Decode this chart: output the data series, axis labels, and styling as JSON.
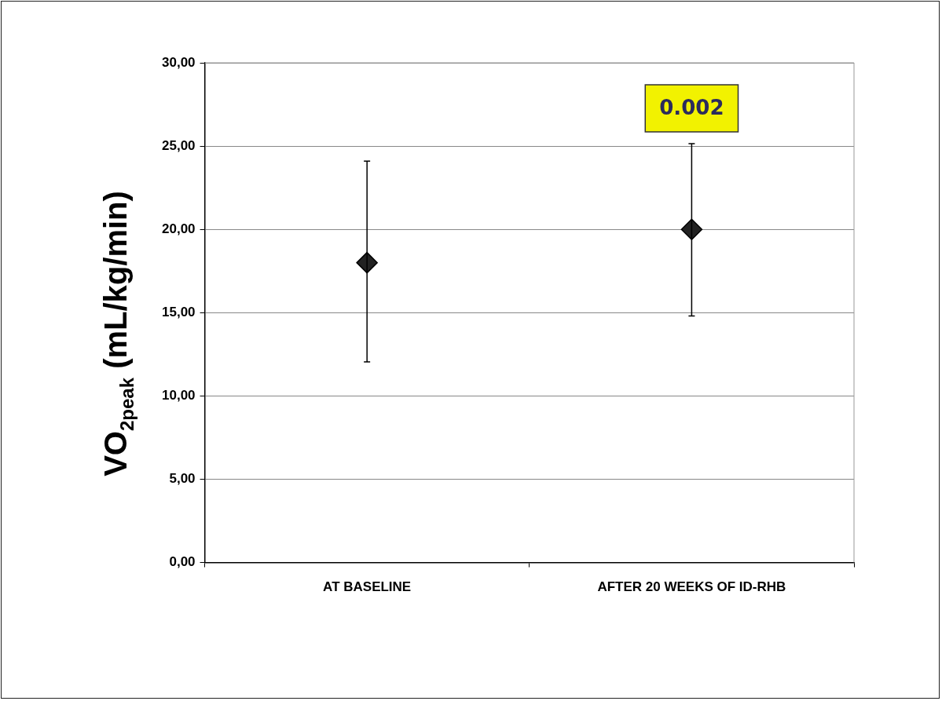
{
  "chart_data": {
    "type": "scatter",
    "ylabel": "VO$_{2peak}$ (mL/kg/min)",
    "categories": [
      "AT BASELINE",
      "AFTER 20 WEEKS OF ID-RHB"
    ],
    "values": [
      18.0,
      20.0
    ],
    "errors": [
      [
        12.05,
        24.1
      ],
      [
        14.8,
        25.15
      ]
    ],
    "color": "#222222",
    "marker": "diamond",
    "grid": "y",
    "ylim": [
      0,
      30
    ],
    "yticks": [
      {
        "value": 0,
        "label": "0,00"
      },
      {
        "value": 5,
        "label": "5,00"
      },
      {
        "value": 10,
        "label": "10,00"
      },
      {
        "value": 15,
        "label": "15,00"
      },
      {
        "value": 20,
        "label": "20,00"
      },
      {
        "value": 25,
        "label": "25,00"
      },
      {
        "value": 30,
        "label": "30,00"
      }
    ],
    "annotations": [
      "0.002"
    ]
  }
}
